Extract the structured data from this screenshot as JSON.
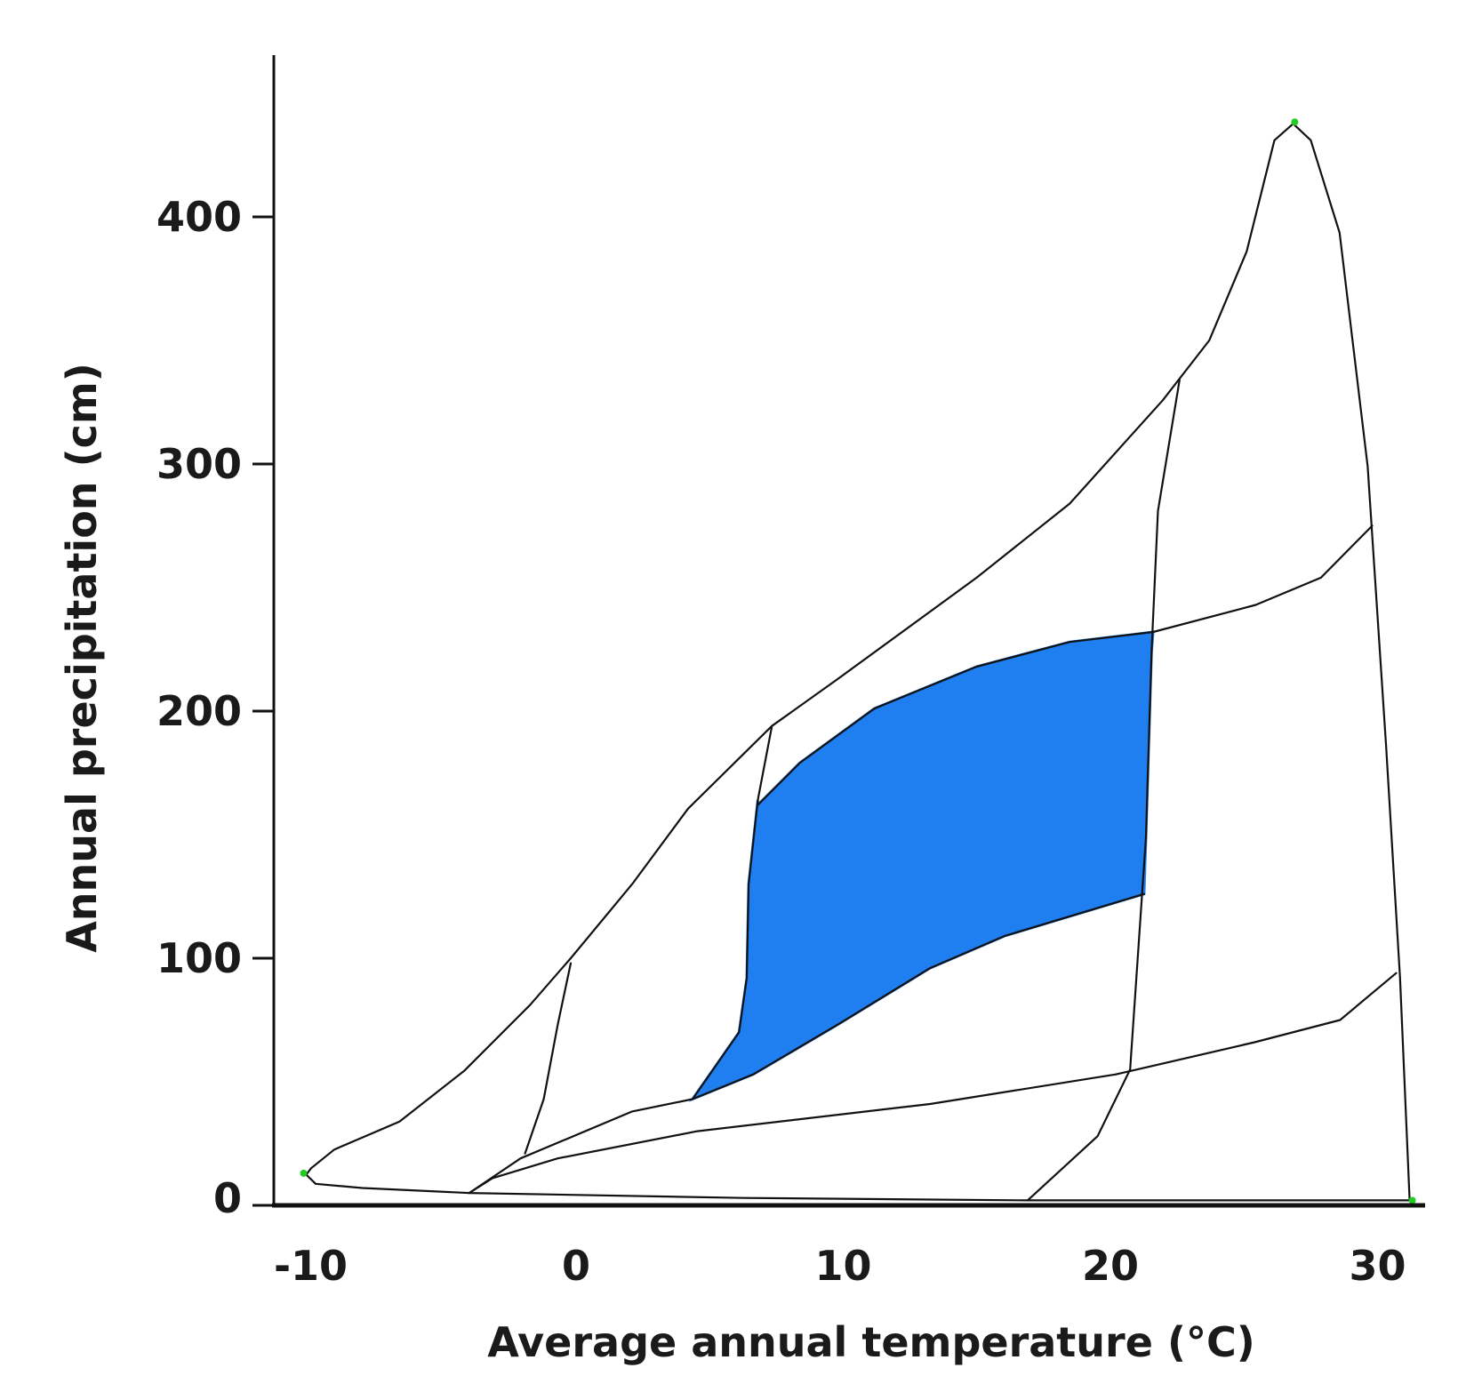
{
  "chart_data": {
    "type": "area",
    "title": "",
    "xlabel": "Average annual temperature (°C)",
    "ylabel": "Annual precipitation (cm)",
    "xlim": [
      -11.1,
      32.1
    ],
    "ylim": [
      0,
      465
    ],
    "xticks": [
      -10,
      0,
      10,
      20,
      30
    ],
    "yticks": [
      0,
      100,
      200,
      300,
      400
    ],
    "grid": false,
    "highlight_color": "#1f7ff0",
    "marker_color": "#22cc22",
    "outer_boundary": [
      [
        -9.9,
        12.4
      ],
      [
        -9.72,
        15
      ],
      [
        -8.85,
        22.6
      ],
      [
        -6.41,
        33.9
      ],
      [
        -3.97,
        54.6
      ],
      [
        -1.53,
        81
      ],
      [
        0,
        100
      ],
      [
        2.3,
        130
      ],
      [
        4.39,
        160.5
      ],
      [
        7.53,
        194
      ],
      [
        9.97,
        212.8
      ],
      [
        15.19,
        254
      ],
      [
        18.68,
        284
      ],
      [
        22.16,
        325.8
      ],
      [
        23.9,
        350
      ],
      [
        25.3,
        386
      ],
      [
        26.34,
        431
      ],
      [
        27.04,
        437.7
      ],
      [
        27.7,
        431
      ],
      [
        28.78,
        393.6
      ],
      [
        29.83,
        299
      ],
      [
        30.52,
        186
      ],
      [
        31.04,
        92
      ],
      [
        31.4,
        2
      ],
      [
        17.1,
        2
      ],
      [
        6.48,
        3
      ],
      [
        -3.8,
        5
      ],
      [
        -7.8,
        7
      ],
      [
        -9.55,
        8.7
      ],
      [
        -9.9,
        12.4
      ]
    ],
    "boundaries": [
      [
        [
          0,
          98
        ],
        [
          -0.49,
          73
        ],
        [
          -1.01,
          43
        ],
        [
          -1.71,
          21
        ]
      ],
      [
        [
          -3.8,
          5
        ],
        [
          -1.88,
          19
        ],
        [
          2.3,
          38
        ],
        [
          4.56,
          43
        ],
        [
          6.83,
          53
        ],
        [
          9.97,
          73
        ],
        [
          13.45,
          96
        ],
        [
          16.24,
          109
        ],
        [
          21.46,
          126
        ]
      ],
      [
        [
          -3.8,
          5
        ],
        [
          -2.93,
          11
        ],
        [
          -0.49,
          19
        ],
        [
          4.74,
          30
        ],
        [
          13.45,
          41
        ],
        [
          20.4,
          53
        ],
        [
          25.6,
          66
        ],
        [
          28.8,
          75
        ],
        [
          30.9,
          94
        ]
      ],
      [
        [
          7.53,
          194
        ],
        [
          7,
          164
        ],
        [
          6.66,
          130
        ],
        [
          6.59,
          92
        ],
        [
          6.3,
          70
        ],
        [
          4.56,
          43
        ]
      ],
      [
        [
          7,
          162
        ],
        [
          8.57,
          179
        ],
        [
          11.36,
          201
        ],
        [
          15.19,
          218
        ],
        [
          18.68,
          228
        ],
        [
          21.8,
          232
        ],
        [
          25.64,
          243
        ],
        [
          28.08,
          254
        ],
        [
          30,
          275
        ]
      ],
      [
        [
          22.79,
          334
        ],
        [
          21.98,
          281
        ],
        [
          21.74,
          224
        ],
        [
          21.53,
          149
        ],
        [
          20.94,
          55
        ],
        [
          19.72,
          28
        ],
        [
          17.1,
          2
        ]
      ]
    ],
    "highlighted_region": [
      [
        7,
        162
      ],
      [
        8.57,
        179
      ],
      [
        11.36,
        201
      ],
      [
        15.19,
        218
      ],
      [
        18.68,
        228
      ],
      [
        21.8,
        232
      ],
      [
        21.74,
        224
      ],
      [
        21.53,
        149
      ],
      [
        21.46,
        126
      ],
      [
        16.24,
        109
      ],
      [
        13.45,
        96
      ],
      [
        9.97,
        73
      ],
      [
        6.83,
        53
      ],
      [
        4.56,
        43
      ],
      [
        6.3,
        70
      ],
      [
        6.59,
        92
      ],
      [
        6.66,
        130
      ],
      [
        7,
        164
      ]
    ],
    "markers": [
      [
        -10,
        13
      ],
      [
        27.1,
        438.4
      ],
      [
        31.5,
        2
      ]
    ]
  }
}
